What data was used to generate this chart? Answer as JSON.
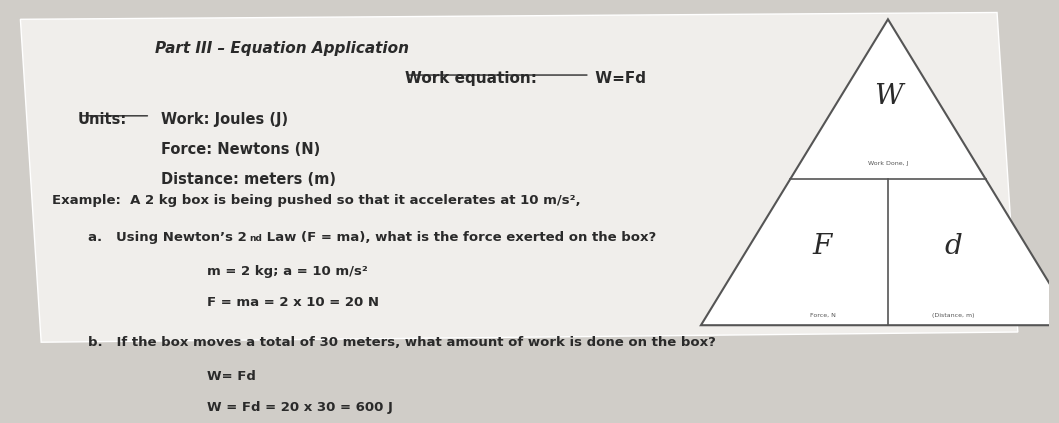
{
  "bg_color": "#d0cdc8",
  "paper_color": "#f0eeeb",
  "title": "Part III – Equation Application",
  "work_eq_label": "Work equation:",
  "work_eq_value": " W=Fd",
  "units_label": "Units:",
  "units_lines": [
    "Work: Joules (J)",
    "Force: Newtons (N)",
    "Distance: meters (m)"
  ],
  "example_line1": "Example:  A 2 kg box is being pushed so that it accelerates at 10 m/s²,",
  "example_line2a": "a.   Using Newton’s 2",
  "example_line2b": "nd",
  "example_line2c": " Law (F = ma), what is the force exerted on the box?",
  "example_line3": "m = 2 kg; a = 10 m/s²",
  "example_line4": "F = ma = 2 x 10 = 20 N",
  "example_line5": "b.   If the box moves a total of 30 meters, what amount of work is done on the box?",
  "example_line6": "W= Fd",
  "example_line7": "W = Fd = 20 x 30 = 600 J",
  "tri_W": "W",
  "tri_F": "F",
  "tri_d": "d",
  "tri_label_top": "Work Done, J",
  "tri_label_bl": "Force, N",
  "tri_label_br": "(Distance, m)"
}
